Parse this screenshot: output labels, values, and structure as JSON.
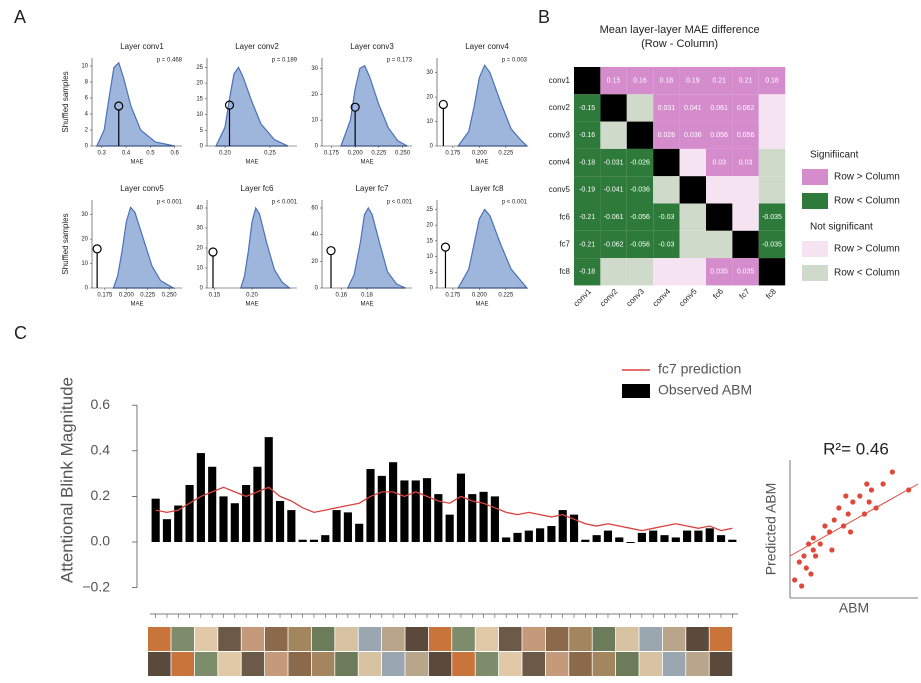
{
  "panel_labels": [
    "A",
    "B",
    "C"
  ],
  "chart_data": [
    {
      "type": "histogram",
      "title": "Layer conv1",
      "p_label": "p = 0.468",
      "xlabel": "MAE",
      "ylabel": "Shuffled samples",
      "color": "#9fb6dc",
      "line_color": "#4a72b8",
      "x": [
        0.28,
        0.31,
        0.33,
        0.35,
        0.37,
        0.39,
        0.42,
        0.46,
        0.52,
        0.6
      ],
      "values": [
        0,
        2,
        6,
        9.8,
        10.4,
        8.5,
        5,
        2,
        0.5,
        0
      ],
      "observed": {
        "x": 0.37,
        "y": 5
      },
      "xlim": [
        0.26,
        0.63
      ],
      "xticks": [
        0.3,
        0.4,
        0.5,
        0.6
      ],
      "ylim": [
        0,
        11
      ],
      "yticks": [
        0,
        2,
        4,
        6,
        8,
        10
      ]
    },
    {
      "type": "histogram",
      "title": "Layer conv2",
      "p_label": "p = 0.189",
      "xlabel": "MAE",
      "color": "#9fb6dc",
      "line_color": "#4a72b8",
      "x": [
        0.19,
        0.2,
        0.205,
        0.21,
        0.215,
        0.22,
        0.23,
        0.24,
        0.255,
        0.27
      ],
      "values": [
        0,
        6,
        15,
        23,
        25,
        22,
        14,
        7,
        2,
        0
      ],
      "observed": {
        "x": 0.205,
        "y": 13
      },
      "xlim": [
        0.18,
        0.28
      ],
      "xticks": [
        {
          "value": 0.2,
          "label": "0.20"
        },
        0.25
      ],
      "ylim": [
        0,
        28
      ],
      "yticks": [
        0,
        5,
        10,
        15,
        20,
        25
      ]
    },
    {
      "type": "histogram",
      "title": "Layer conv3",
      "p_label": "p = 0.173",
      "xlabel": "MAE",
      "color": "#9fb6dc",
      "line_color": "#4a72b8",
      "x": [
        0.185,
        0.195,
        0.2,
        0.205,
        0.21,
        0.215,
        0.225,
        0.235,
        0.245,
        0.255
      ],
      "values": [
        0,
        10,
        22,
        30,
        31,
        27,
        16,
        7,
        2,
        0
      ],
      "observed": {
        "x": 0.2,
        "y": 15
      },
      "xlim": [
        0.165,
        0.26
      ],
      "xticks": [
        0.175,
        {
          "value": 0.2,
          "label": "0.200"
        },
        0.225,
        {
          "value": 0.25,
          "label": "0.250"
        }
      ],
      "ylim": [
        0,
        34
      ],
      "yticks": [
        0,
        10,
        20,
        30
      ]
    },
    {
      "type": "histogram",
      "title": "Layer conv4",
      "p_label": "p = 0.003",
      "xlabel": "MAE",
      "color": "#9fb6dc",
      "line_color": "#4a72b8",
      "x": [
        0.18,
        0.19,
        0.195,
        0.2,
        0.205,
        0.21,
        0.22,
        0.23,
        0.24,
        0.245
      ],
      "values": [
        0,
        6,
        16,
        28,
        33,
        30,
        18,
        7,
        2,
        0
      ],
      "observed": {
        "x": 0.166,
        "y": 17
      },
      "xlim": [
        0.16,
        0.245
      ],
      "xticks": [
        0.175,
        {
          "value": 0.2,
          "label": "0.200"
        },
        0.225
      ],
      "ylim": [
        0,
        36
      ],
      "yticks": [
        0,
        10,
        20,
        30
      ]
    },
    {
      "type": "histogram",
      "title": "Layer conv5",
      "p_label": "p < 0.001",
      "xlabel": "MAE",
      "ylabel": "Shuffled samples",
      "color": "#9fb6dc",
      "line_color": "#4a72b8",
      "x": [
        0.185,
        0.19,
        0.195,
        0.2,
        0.205,
        0.21,
        0.22,
        0.23,
        0.24,
        0.255
      ],
      "values": [
        0,
        5,
        15,
        27,
        33,
        31,
        20,
        9,
        3,
        0
      ],
      "observed": {
        "x": 0.166,
        "y": 16
      },
      "xlim": [
        0.16,
        0.265
      ],
      "xticks": [
        0.175,
        {
          "value": 0.2,
          "label": "0.200"
        },
        0.225,
        {
          "value": 0.25,
          "label": "0.250"
        }
      ],
      "ylim": [
        0,
        36
      ],
      "yticks": [
        0,
        10,
        20,
        30
      ]
    },
    {
      "type": "histogram",
      "title": "Layer fc6",
      "p_label": "p < 0.001",
      "xlabel": "MAE",
      "color": "#9fb6dc",
      "line_color": "#4a72b8",
      "x": [
        0.185,
        0.19,
        0.195,
        0.2,
        0.205,
        0.21,
        0.22,
        0.23,
        0.24,
        0.25
      ],
      "values": [
        0,
        6,
        18,
        33,
        40,
        37,
        22,
        9,
        3,
        0
      ],
      "observed": {
        "x": 0.148,
        "y": 18
      },
      "xlim": [
        0.14,
        0.26
      ],
      "xticks": [
        0.15,
        {
          "value": 0.2,
          "label": "0.20"
        }
      ],
      "ylim": [
        0,
        44
      ],
      "yticks": [
        0,
        10,
        20,
        30,
        40
      ]
    },
    {
      "type": "histogram",
      "title": "Layer fc7",
      "p_label": "p < 0.001",
      "xlabel": "MAE",
      "color": "#9fb6dc",
      "line_color": "#4a72b8",
      "x": [
        0.165,
        0.17,
        0.175,
        0.178,
        0.181,
        0.184,
        0.19,
        0.196,
        0.203,
        0.21
      ],
      "values": [
        0,
        10,
        35,
        55,
        60,
        55,
        33,
        12,
        3,
        0
      ],
      "observed": {
        "x": 0.152,
        "y": 28
      },
      "xlim": [
        0.145,
        0.215
      ],
      "xticks": [
        0.16,
        0.18
      ],
      "ylim": [
        0,
        66
      ],
      "yticks": [
        0,
        20,
        40,
        60
      ]
    },
    {
      "type": "histogram",
      "title": "Layer fc8",
      "p_label": "p < 0.001",
      "xlabel": "MAE",
      "color": "#9fb6dc",
      "line_color": "#4a72b8",
      "x": [
        0.18,
        0.19,
        0.195,
        0.2,
        0.205,
        0.21,
        0.22,
        0.23,
        0.24,
        0.245
      ],
      "values": [
        0,
        6,
        14,
        22,
        25,
        23,
        14,
        6,
        2,
        0
      ],
      "observed": {
        "x": 0.168,
        "y": 13
      },
      "xlim": [
        0.16,
        0.245
      ],
      "xticks": [
        0.175,
        {
          "value": 0.2,
          "label": "0.200"
        },
        0.225
      ],
      "ylim": [
        0,
        28
      ],
      "yticks": [
        0,
        5,
        10,
        15,
        20,
        25
      ]
    },
    {
      "type": "heatmap",
      "title": "Mean layer-layer MAE difference",
      "subtitle": "(Row - Column)",
      "labels": [
        "conv1",
        "conv2",
        "conv3",
        "conv4",
        "conv5",
        "fc6",
        "fc7",
        "fc8"
      ],
      "values": [
        [
          null,
          0.15,
          0.16,
          0.18,
          0.19,
          0.21,
          0.21,
          0.18
        ],
        [
          -0.15,
          null,
          null,
          0.031,
          0.041,
          0.061,
          0.062,
          null
        ],
        [
          -0.16,
          null,
          null,
          0.026,
          0.036,
          0.056,
          0.056,
          null
        ],
        [
          -0.18,
          -0.031,
          -0.026,
          null,
          null,
          0.03,
          0.03,
          null
        ],
        [
          -0.19,
          -0.041,
          -0.036,
          null,
          null,
          null,
          null,
          null
        ],
        [
          -0.21,
          -0.061,
          -0.056,
          -0.03,
          null,
          null,
          null,
          -0.035
        ],
        [
          -0.21,
          -0.062,
          -0.056,
          -0.03,
          null,
          null,
          null,
          -0.035
        ],
        [
          -0.18,
          null,
          null,
          null,
          null,
          0.035,
          0.035,
          null
        ]
      ],
      "cell_colors": [
        [
          "#000000",
          "#d48ccc",
          "#d48ccc",
          "#d48ccc",
          "#d48ccc",
          "#d48ccc",
          "#d48ccc",
          "#d48ccc"
        ],
        [
          "#2d7a3a",
          "#000000",
          "#cfdacb",
          "#d48ccc",
          "#d48ccc",
          "#d48ccc",
          "#d48ccc",
          "#f5e3f1"
        ],
        [
          "#2d7a3a",
          "#cfdacb",
          "#000000",
          "#d48ccc",
          "#d48ccc",
          "#d48ccc",
          "#d48ccc",
          "#f5e3f1"
        ],
        [
          "#2d7a3a",
          "#2d7a3a",
          "#2d7a3a",
          "#000000",
          "#f5e3f1",
          "#d48ccc",
          "#d48ccc",
          "#cfdacb"
        ],
        [
          "#2d7a3a",
          "#2d7a3a",
          "#2d7a3a",
          "#cfdacb",
          "#000000",
          "#f5e3f1",
          "#f5e3f1",
          "#cfdacb"
        ],
        [
          "#2d7a3a",
          "#2d7a3a",
          "#2d7a3a",
          "#2d7a3a",
          "#cfdacb",
          "#000000",
          "#f5e3f1",
          "#2d7a3a"
        ],
        [
          "#2d7a3a",
          "#2d7a3a",
          "#2d7a3a",
          "#2d7a3a",
          "#cfdacb",
          "#cfdacb",
          "#000000",
          "#2d7a3a"
        ],
        [
          "#2d7a3a",
          "#cfdacb",
          "#cfdacb",
          "#f5e3f1",
          "#f5e3f1",
          "#d48ccc",
          "#d48ccc",
          "#000000"
        ]
      ],
      "legend_groups": [
        {
          "title": "Signifiicant",
          "items": [
            {
              "name": "Row > Column",
              "color": "#d48ccc"
            },
            {
              "name": "Row < Column",
              "color": "#2d7a3a"
            }
          ]
        },
        {
          "title": "Not significant",
          "items": [
            {
              "name": "Row > Column",
              "color": "#f5e3f1"
            },
            {
              "name": "Row < Column",
              "color": "#cfdacb"
            }
          ]
        }
      ]
    },
    {
      "type": "bar",
      "ylabel": "Attentional Blink Magnitude",
      "categories": [
        null,
        null,
        null,
        null,
        null,
        null,
        null,
        null,
        null,
        null,
        null,
        null,
        null,
        null,
        null,
        null,
        null,
        null,
        null,
        null,
        null,
        null,
        null,
        null,
        null,
        null,
        null,
        null,
        null,
        null,
        null,
        null,
        null,
        null,
        null,
        null,
        null,
        null,
        null,
        null,
        null,
        null,
        null,
        null,
        null,
        null,
        null,
        null,
        null,
        null,
        null,
        null
      ],
      "series": [
        {
          "name": "fc7 prediction",
          "color": "#d9423f",
          "mark": "line",
          "values": [
            0.14,
            0.13,
            0.14,
            0.17,
            0.2,
            0.22,
            0.24,
            0.22,
            0.2,
            0.22,
            0.24,
            0.2,
            0.18,
            0.15,
            0.13,
            0.14,
            0.15,
            0.16,
            0.17,
            0.2,
            0.22,
            0.22,
            0.2,
            0.22,
            0.2,
            0.18,
            0.17,
            0.2,
            0.18,
            0.17,
            0.15,
            0.13,
            0.12,
            0.13,
            0.12,
            0.11,
            0.12,
            0.1,
            0.08,
            0.07,
            0.08,
            0.07,
            0.06,
            0.05,
            0.06,
            0.07,
            0.08,
            0.07,
            0.06,
            0.07,
            0.05,
            0.06
          ]
        },
        {
          "name": "Observed ABM",
          "color": "#000000",
          "mark": "bar",
          "values": [
            0.19,
            0.1,
            0.16,
            0.25,
            0.39,
            0.33,
            0.2,
            0.17,
            0.25,
            0.33,
            0.46,
            0.18,
            0.14,
            0.01,
            0.01,
            0.03,
            0.14,
            0.13,
            0.08,
            0.32,
            0.29,
            0.35,
            0.27,
            0.27,
            0.28,
            0.21,
            0.12,
            0.3,
            0.21,
            0.22,
            0.2,
            0.02,
            0.04,
            0.05,
            0.06,
            0.07,
            0.14,
            0.12,
            0.01,
            0.03,
            0.05,
            0.02,
            0.0,
            0.04,
            0.05,
            0.03,
            0.02,
            0.05,
            0.05,
            0.06,
            0.03,
            0.01
          ]
        }
      ],
      "ylim": [
        -0.25,
        0.75
      ],
      "yticks": [
        {
          "value": -0.2,
          "label": "−0.2"
        },
        {
          "value": 0,
          "label": "0.0"
        },
        0.2,
        0.4,
        0.6
      ]
    },
    {
      "type": "scatter",
      "title": "R²= 0.46",
      "xlabel": "ABM",
      "ylabel": "Predicted ABM",
      "color": "#e0493a",
      "line_color": "#e0493a",
      "x": [
        -0.03,
        -0.01,
        0.0,
        0.01,
        0.02,
        0.03,
        0.04,
        0.05,
        0.05,
        0.06,
        0.08,
        0.1,
        0.12,
        0.13,
        0.14,
        0.16,
        0.18,
        0.19,
        0.2,
        0.21,
        0.22,
        0.25,
        0.27,
        0.28,
        0.29,
        0.3,
        0.32,
        0.35,
        0.39,
        0.46
      ],
      "y": [
        0.06,
        0.09,
        0.05,
        0.1,
        0.08,
        0.12,
        0.07,
        0.11,
        0.13,
        0.1,
        0.12,
        0.15,
        0.14,
        0.11,
        0.16,
        0.18,
        0.15,
        0.2,
        0.17,
        0.14,
        0.19,
        0.2,
        0.17,
        0.22,
        0.19,
        0.21,
        0.18,
        0.22,
        0.24,
        0.21
      ],
      "trendline": {
        "x": [
          -0.05,
          0.5
        ],
        "y": [
          0.1,
          0.22
        ]
      },
      "xlim": [
        -0.05,
        0.5
      ],
      "ylim": [
        0.03,
        0.26
      ]
    }
  ]
}
